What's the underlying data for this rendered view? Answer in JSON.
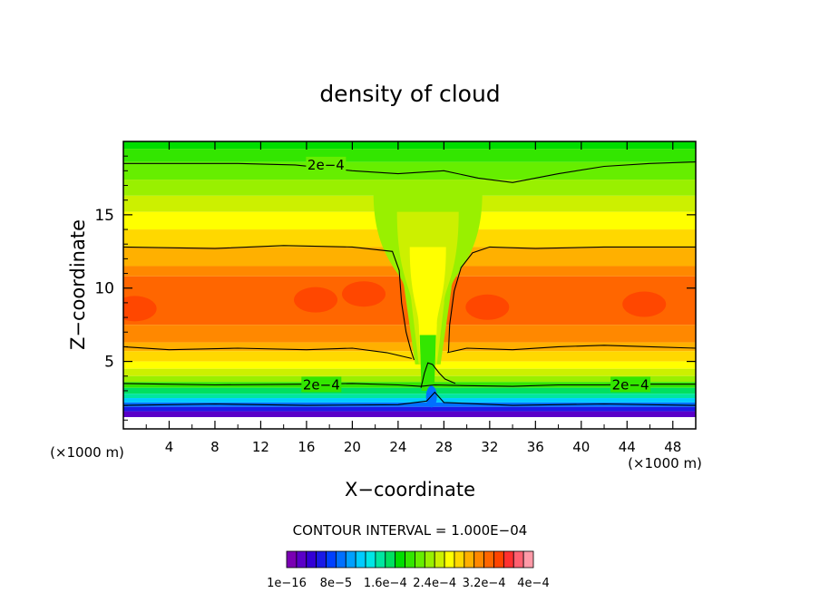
{
  "chart_data": {
    "type": "heatmap",
    "title": "density of cloud",
    "xlabel": "X−coordinate",
    "ylabel": "Z−coordinate",
    "x_unit_label": "(×1000 m)",
    "y_unit_label": "(×1000 m)",
    "xlim": [
      0,
      50
    ],
    "ylim": [
      0.4,
      20
    ],
    "x_ticks": [
      "4",
      "8",
      "12",
      "16",
      "20",
      "24",
      "28",
      "32",
      "36",
      "40",
      "44",
      "48"
    ],
    "x_tick_values": [
      4,
      8,
      12,
      16,
      20,
      24,
      28,
      32,
      36,
      40,
      44,
      48
    ],
    "y_ticks": [
      "5",
      "10",
      "15"
    ],
    "y_tick_values": [
      5,
      10,
      15
    ],
    "contour_interval_text": "CONTOUR INTERVAL = 1.000E−04",
    "contour_labels": [
      {
        "text": "2e−4",
        "x": 17.7,
        "z": 18.4
      },
      {
        "text": "2e−4",
        "x": 17.3,
        "z": 3.4
      },
      {
        "text": "2e−4",
        "x": 44.3,
        "z": 3.4
      }
    ],
    "colorbar": {
      "tick_labels": [
        "1e−16",
        "8e−5",
        "1.6e−4",
        "2.4e−4",
        "3.2e−4",
        "4e−4"
      ],
      "colors": [
        "#7a00b3",
        "#5a00c8",
        "#3300d6",
        "#1a1ae6",
        "#0040ff",
        "#0070ff",
        "#00a0ff",
        "#00ccff",
        "#00e6e6",
        "#00e6a0",
        "#00e060",
        "#00dd00",
        "#33e600",
        "#66ee00",
        "#99f000",
        "#ccf000",
        "#ffff00",
        "#ffd800",
        "#ffb000",
        "#ff8800",
        "#ff6600",
        "#ff4400",
        "#ff3030",
        "#ff6070",
        "#ff9aa8"
      ]
    },
    "bands": [
      {
        "z_from": 19.5,
        "z_to": 20.0,
        "color": "#00dd00"
      },
      {
        "z_from": 18.6,
        "z_to": 19.5,
        "color": "#33e600"
      },
      {
        "z_from": 17.4,
        "z_to": 18.6,
        "color": "#66ee00"
      },
      {
        "z_from": 16.3,
        "z_to": 17.4,
        "color": "#99f000"
      },
      {
        "z_from": 15.2,
        "z_to": 16.3,
        "color": "#ccf000"
      },
      {
        "z_from": 14.0,
        "z_to": 15.2,
        "color": "#ffff00"
      },
      {
        "z_from": 12.8,
        "z_to": 14.0,
        "color": "#ffd800"
      },
      {
        "z_from": 11.5,
        "z_to": 12.8,
        "color": "#ffb000"
      },
      {
        "z_from": 10.8,
        "z_to": 11.5,
        "color": "#ff8800"
      },
      {
        "z_from": 7.5,
        "z_to": 10.8,
        "color": "#ff6600"
      },
      {
        "z_from": 6.3,
        "z_to": 7.5,
        "color": "#ff8800"
      },
      {
        "z_from": 5.7,
        "z_to": 6.3,
        "color": "#ffb000"
      },
      {
        "z_from": 5.0,
        "z_to": 5.7,
        "color": "#ffd800"
      },
      {
        "z_from": 4.5,
        "z_to": 5.0,
        "color": "#ffff00"
      },
      {
        "z_from": 4.0,
        "z_to": 4.5,
        "color": "#ccf000"
      },
      {
        "z_from": 3.6,
        "z_to": 4.0,
        "color": "#99f000"
      },
      {
        "z_from": 3.2,
        "z_to": 3.6,
        "color": "#33e600"
      },
      {
        "z_from": 2.8,
        "z_to": 3.2,
        "color": "#00e060"
      },
      {
        "z_from": 2.5,
        "z_to": 2.8,
        "color": "#00e6a0"
      },
      {
        "z_from": 2.2,
        "z_to": 2.5,
        "color": "#00ccff"
      },
      {
        "z_from": 1.9,
        "z_to": 2.2,
        "color": "#0070ff"
      },
      {
        "z_from": 1.6,
        "z_to": 1.9,
        "color": "#1a1ae6"
      },
      {
        "z_from": 1.2,
        "z_to": 1.6,
        "color": "#5a00c8"
      },
      {
        "z_from": 0.4,
        "z_to": 1.2,
        "color": "#ffffff"
      }
    ],
    "gap_column": {
      "x_center": 26.6,
      "color_top": "#99f000",
      "color_mid": "#ccf000",
      "color_low": "#33e600"
    },
    "core_patches": [
      {
        "x": 16.8,
        "z": 9.2,
        "color": "#ff4400"
      },
      {
        "x": 21.0,
        "z": 9.6,
        "color": "#ff4400"
      },
      {
        "x": 31.8,
        "z": 8.7,
        "color": "#ff4400"
      },
      {
        "x": 45.5,
        "z": 8.9,
        "color": "#ff4400"
      },
      {
        "x": 1.0,
        "z": 8.6,
        "color": "#ff4400"
      }
    ],
    "contours": [
      {
        "level": "2e−4",
        "points": [
          [
            0,
            18.5
          ],
          [
            10,
            18.5
          ],
          [
            15,
            18.4
          ],
          [
            20,
            18.0
          ],
          [
            24,
            17.8
          ],
          [
            28,
            18.0
          ],
          [
            31,
            17.5
          ],
          [
            34,
            17.2
          ],
          [
            38,
            17.8
          ],
          [
            42,
            18.3
          ],
          [
            46,
            18.5
          ],
          [
            50,
            18.6
          ]
        ]
      },
      {
        "level": "2e−4",
        "points": [
          [
            0,
            3.5
          ],
          [
            8,
            3.4
          ],
          [
            16,
            3.45
          ],
          [
            20,
            3.5
          ],
          [
            24,
            3.4
          ],
          [
            26,
            3.3
          ],
          [
            27.2,
            3.4
          ],
          [
            30,
            3.35
          ],
          [
            34,
            3.3
          ],
          [
            38,
            3.4
          ],
          [
            42,
            3.4
          ],
          [
            46,
            3.45
          ],
          [
            50,
            3.45
          ]
        ]
      },
      {
        "level": "",
        "points": [
          [
            0,
            12.8
          ],
          [
            8,
            12.7
          ],
          [
            14,
            12.9
          ],
          [
            20,
            12.8
          ],
          [
            23.5,
            12.5
          ],
          [
            24.1,
            11.2
          ],
          [
            24.3,
            9.0
          ],
          [
            24.7,
            7.0
          ],
          [
            25.1,
            5.8
          ],
          [
            25.4,
            5.1
          ]
        ]
      },
      {
        "level": "",
        "points": [
          [
            0,
            6.0
          ],
          [
            4,
            5.8
          ],
          [
            10,
            5.9
          ],
          [
            16,
            5.8
          ],
          [
            20,
            5.9
          ],
          [
            23,
            5.6
          ],
          [
            25.2,
            5.2
          ]
        ]
      },
      {
        "level": "",
        "points": [
          [
            28.3,
            5.6
          ],
          [
            30,
            5.9
          ],
          [
            34,
            5.8
          ],
          [
            38,
            6.0
          ],
          [
            42,
            6.1
          ],
          [
            46,
            6.0
          ],
          [
            50,
            5.9
          ]
        ]
      },
      {
        "level": "",
        "points": [
          [
            28.4,
            5.6
          ],
          [
            28.5,
            7.5
          ],
          [
            28.9,
            9.8
          ],
          [
            29.5,
            11.4
          ],
          [
            30.5,
            12.4
          ],
          [
            32,
            12.8
          ],
          [
            36,
            12.7
          ],
          [
            42,
            12.8
          ],
          [
            50,
            12.8
          ]
        ]
      },
      {
        "level": "",
        "points": [
          [
            26.0,
            3.2
          ],
          [
            26.3,
            4.2
          ],
          [
            26.6,
            4.9
          ],
          [
            27.0,
            4.8
          ],
          [
            27.6,
            4.2
          ],
          [
            28.1,
            3.8
          ],
          [
            29.0,
            3.5
          ]
        ]
      },
      {
        "level": "",
        "points": [
          [
            0,
            2.0
          ],
          [
            8,
            2.1
          ],
          [
            16,
            2.0
          ],
          [
            24,
            2.05
          ],
          [
            26.5,
            2.3
          ],
          [
            27.2,
            2.9
          ],
          [
            28,
            2.2
          ],
          [
            34,
            2.0
          ],
          [
            42,
            2.1
          ],
          [
            50,
            2.0
          ]
        ]
      }
    ]
  }
}
